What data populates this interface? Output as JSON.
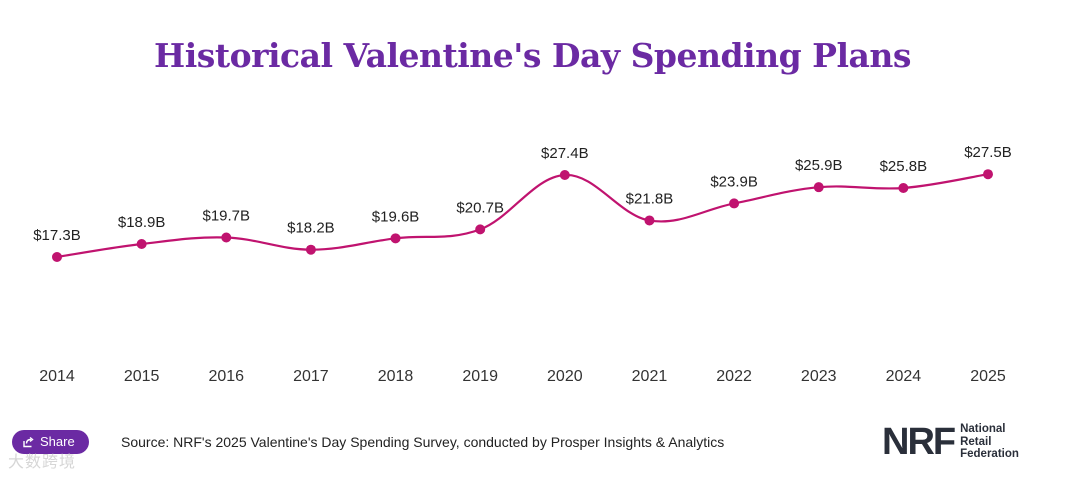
{
  "title": "Historical Valentine's Day Spending Plans",
  "chart_data": {
    "type": "line",
    "title": "Historical Valentine's Day Spending Plans",
    "xlabel": "",
    "ylabel": "",
    "categories": [
      "2014",
      "2015",
      "2016",
      "2017",
      "2018",
      "2019",
      "2020",
      "2021",
      "2022",
      "2023",
      "2024",
      "2025"
    ],
    "values": [
      17.3,
      18.9,
      19.7,
      18.2,
      19.6,
      20.7,
      27.4,
      21.8,
      23.9,
      25.9,
      25.8,
      27.5
    ],
    "labels": [
      "$17.3B",
      "$18.9B",
      "$19.7B",
      "$18.2B",
      "$19.6B",
      "$20.7B",
      "$27.4B",
      "$21.8B",
      "$23.9B",
      "$25.9B",
      "$25.8B",
      "$27.5B"
    ],
    "unit": "$ billions",
    "color": "#c0136f",
    "grid": false,
    "legend": "none"
  },
  "footer": {
    "share_label": "Share",
    "share_icon": "share-icon",
    "source": "Source: NRF's 2025 Valentine's Day Spending Survey, conducted by Prosper Insights & Analytics",
    "watermark": "大数跨境"
  },
  "logo": {
    "mark": "NRF",
    "line1": "National",
    "line2": "Retail",
    "line3": "Federation"
  },
  "colors": {
    "title": "#6b2aa3",
    "line": "#c0136f",
    "share_bg": "#6b2aa3"
  }
}
